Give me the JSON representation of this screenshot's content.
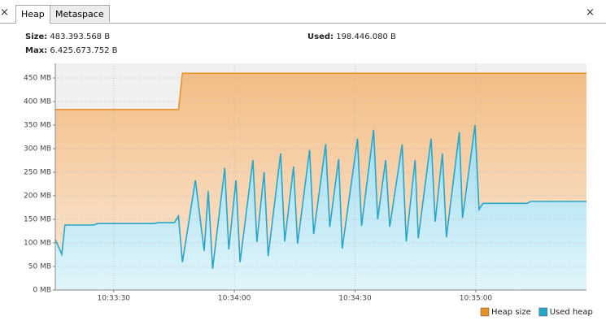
{
  "tabs": [
    {
      "label": "Heap"
    },
    {
      "label": "Metaspace"
    }
  ],
  "info": {
    "size_label": "Size:",
    "size": "483.393.568 B",
    "max_label": "Max:",
    "max": "6.425.673.752 B",
    "used_label": "Used:",
    "used": "198.446.080 B"
  },
  "chart_data": {
    "type": "area",
    "series": [
      {
        "name": "Heap size",
        "color": "#e8922a",
        "fill": "#f6c894",
        "x": [
          37995.5,
          38026.1,
          38027.1,
          38127.5
        ],
        "values": [
          383,
          383,
          460,
          460
        ]
      },
      {
        "name": "Used heap",
        "color": "#27a6cb",
        "fill": "#a8e1f3",
        "x": [
          37995.5,
          37997.1,
          37997.9,
          38005.0,
          38006.0,
          38020.1,
          38021.1,
          38025.1,
          38026.1,
          38027.1,
          38030.3,
          38032.5,
          38033.5,
          38034.6,
          38037.6,
          38038.6,
          38040.4,
          38041.4,
          38044.6,
          38045.6,
          38047.4,
          38048.4,
          38051.5,
          38052.5,
          38054.7,
          38055.7,
          38058.7,
          38059.7,
          38062.7,
          38063.7,
          38065.9,
          38066.8,
          38070.6,
          38071.6,
          38074.6,
          38075.6,
          38077.6,
          38078.6,
          38081.7,
          38082.7,
          38084.9,
          38085.7,
          38088.9,
          38089.9,
          38091.7,
          38092.7,
          38095.9,
          38096.7,
          38099.8,
          38100.8,
          38101.8,
          38112.7,
          38113.7,
          38127.5
        ],
        "values": [
          107,
          76,
          138,
          138,
          141,
          141,
          143,
          143,
          157,
          59,
          233,
          83,
          210,
          45,
          259,
          86,
          233,
          59,
          276,
          102,
          250,
          72,
          290,
          103,
          262,
          98,
          297,
          119,
          310,
          134,
          278,
          88,
          321,
          136,
          340,
          150,
          276,
          134,
          309,
          103,
          276,
          110,
          321,
          145,
          290,
          112,
          335,
          153,
          350,
          171,
          184,
          184,
          188,
          188
        ]
      }
    ],
    "xlim": [
      37995.5,
      38127.5
    ],
    "xticks": [
      {
        "value": 38010,
        "label": "10:33:30"
      },
      {
        "value": 38040,
        "label": "10:34:00"
      },
      {
        "value": 38070,
        "label": "10:34:30"
      },
      {
        "value": 38100,
        "label": "10:35:00"
      }
    ],
    "ylim": [
      0,
      481
    ],
    "yticks": [
      {
        "value": 0,
        "label": "0 MB"
      },
      {
        "value": 50,
        "label": "50 MB"
      },
      {
        "value": 100,
        "label": "100 MB"
      },
      {
        "value": 150,
        "label": "150 MB"
      },
      {
        "value": 200,
        "label": "200 MB"
      },
      {
        "value": 250,
        "label": "250 MB"
      },
      {
        "value": 300,
        "label": "300 MB"
      },
      {
        "value": 350,
        "label": "350 MB"
      },
      {
        "value": 400,
        "label": "400 MB"
      },
      {
        "value": 450,
        "label": "450 MB"
      }
    ],
    "grid": true,
    "legend": "bottom-right"
  }
}
